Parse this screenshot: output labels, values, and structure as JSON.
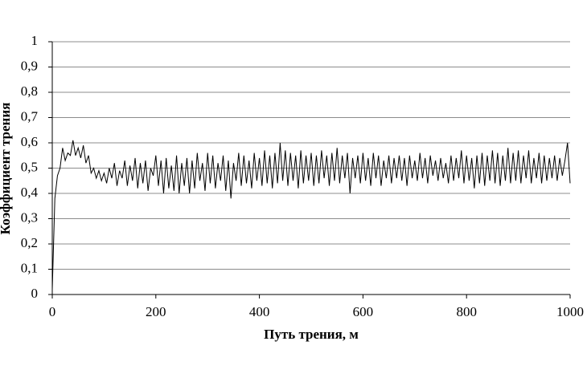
{
  "chart_data": {
    "type": "line",
    "x_label": "Путь трения, м",
    "y_label": "Коэффициент трения",
    "color": "#000000",
    "grid": true,
    "xlim": [
      0,
      1000
    ],
    "xticks": [
      0,
      200,
      400,
      600,
      800,
      1000
    ],
    "ylim": [
      0,
      1
    ],
    "yticks": [
      0,
      {
        "value": 0.1,
        "label": "0,1"
      },
      {
        "value": 0.2,
        "label": "0,2"
      },
      {
        "value": 0.3,
        "label": "0,3"
      },
      {
        "value": 0.4,
        "label": "0,4"
      },
      {
        "value": 0.5,
        "label": "0,5"
      },
      {
        "value": 0.6,
        "label": "0,6"
      },
      {
        "value": 0.7,
        "label": "0,7"
      },
      {
        "value": 0.8,
        "label": "0,8"
      },
      {
        "value": 0.9,
        "label": "0,9"
      },
      1
    ],
    "x": [
      0,
      5,
      10,
      15,
      20,
      25,
      30,
      35,
      40,
      45,
      50,
      55,
      60,
      65,
      70,
      75,
      80,
      85,
      90,
      95,
      100,
      105,
      110,
      115,
      120,
      125,
      130,
      135,
      140,
      145,
      150,
      155,
      160,
      165,
      170,
      175,
      180,
      185,
      190,
      195,
      200,
      205,
      210,
      215,
      220,
      225,
      230,
      235,
      240,
      245,
      250,
      255,
      260,
      265,
      270,
      275,
      280,
      285,
      290,
      295,
      300,
      305,
      310,
      315,
      320,
      325,
      330,
      335,
      340,
      345,
      350,
      355,
      360,
      365,
      370,
      375,
      380,
      385,
      390,
      395,
      400,
      405,
      410,
      415,
      420,
      425,
      430,
      435,
      440,
      445,
      450,
      455,
      460,
      465,
      470,
      475,
      480,
      485,
      490,
      495,
      500,
      505,
      510,
      515,
      520,
      525,
      530,
      535,
      540,
      545,
      550,
      555,
      560,
      565,
      570,
      575,
      580,
      585,
      590,
      595,
      600,
      605,
      610,
      615,
      620,
      625,
      630,
      635,
      640,
      645,
      650,
      655,
      660,
      665,
      670,
      675,
      680,
      685,
      690,
      695,
      700,
      705,
      710,
      715,
      720,
      725,
      730,
      735,
      740,
      745,
      750,
      755,
      760,
      765,
      770,
      775,
      780,
      785,
      790,
      795,
      800,
      805,
      810,
      815,
      820,
      825,
      830,
      835,
      840,
      845,
      850,
      855,
      860,
      865,
      870,
      875,
      880,
      885,
      890,
      895,
      900,
      905,
      910,
      915,
      920,
      925,
      930,
      935,
      940,
      945,
      950,
      955,
      960,
      965,
      970,
      975,
      980,
      985,
      990,
      995,
      1000
    ],
    "values": [
      0.02,
      0.38,
      0.47,
      0.5,
      0.58,
      0.53,
      0.56,
      0.55,
      0.61,
      0.55,
      0.58,
      0.54,
      0.59,
      0.52,
      0.55,
      0.48,
      0.5,
      0.46,
      0.49,
      0.45,
      0.48,
      0.44,
      0.5,
      0.46,
      0.52,
      0.43,
      0.49,
      0.46,
      0.53,
      0.43,
      0.51,
      0.45,
      0.54,
      0.42,
      0.52,
      0.44,
      0.53,
      0.41,
      0.5,
      0.47,
      0.55,
      0.43,
      0.53,
      0.4,
      0.54,
      0.42,
      0.51,
      0.41,
      0.55,
      0.4,
      0.52,
      0.43,
      0.54,
      0.4,
      0.53,
      0.42,
      0.56,
      0.45,
      0.52,
      0.41,
      0.56,
      0.44,
      0.55,
      0.42,
      0.52,
      0.45,
      0.55,
      0.41,
      0.53,
      0.38,
      0.52,
      0.45,
      0.56,
      0.43,
      0.55,
      0.44,
      0.53,
      0.42,
      0.56,
      0.45,
      0.54,
      0.43,
      0.57,
      0.44,
      0.55,
      0.42,
      0.56,
      0.44,
      0.6,
      0.45,
      0.57,
      0.43,
      0.56,
      0.45,
      0.55,
      0.42,
      0.57,
      0.44,
      0.55,
      0.45,
      0.56,
      0.43,
      0.55,
      0.44,
      0.57,
      0.46,
      0.55,
      0.43,
      0.56,
      0.45,
      0.58,
      0.44,
      0.55,
      0.46,
      0.56,
      0.4,
      0.54,
      0.46,
      0.55,
      0.44,
      0.56,
      0.45,
      0.54,
      0.43,
      0.56,
      0.46,
      0.55,
      0.43,
      0.53,
      0.46,
      0.55,
      0.44,
      0.54,
      0.46,
      0.55,
      0.45,
      0.54,
      0.43,
      0.55,
      0.46,
      0.53,
      0.45,
      0.56,
      0.46,
      0.54,
      0.44,
      0.55,
      0.47,
      0.53,
      0.45,
      0.54,
      0.46,
      0.52,
      0.44,
      0.55,
      0.45,
      0.54,
      0.46,
      0.57,
      0.44,
      0.55,
      0.45,
      0.54,
      0.42,
      0.55,
      0.44,
      0.56,
      0.43,
      0.55,
      0.45,
      0.57,
      0.44,
      0.56,
      0.43,
      0.55,
      0.45,
      0.58,
      0.44,
      0.56,
      0.45,
      0.57,
      0.44,
      0.55,
      0.46,
      0.57,
      0.44,
      0.54,
      0.46,
      0.56,
      0.44,
      0.55,
      0.45,
      0.54,
      0.46,
      0.55,
      0.45,
      0.54,
      0.47,
      0.53,
      0.6,
      0.44
    ]
  }
}
